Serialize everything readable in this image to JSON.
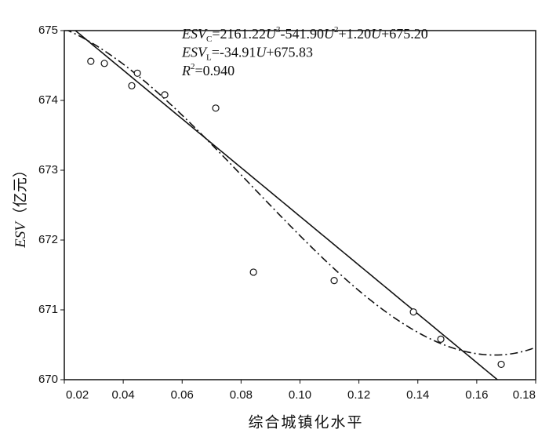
{
  "chart_data": {
    "type": "scatter",
    "x_label": "综合城镇化水平",
    "y_label": [
      {
        "text": "ESV",
        "role": "italic"
      },
      {
        "text": "（亿元）",
        "role": "normal"
      }
    ],
    "x": [
      0.029,
      0.0336,
      0.0429,
      0.0448,
      0.0541,
      0.0714,
      0.0842,
      0.1116,
      0.1385,
      0.1478,
      0.1683
    ],
    "values": [
      674.56,
      674.53,
      674.21,
      674.39,
      674.08,
      673.89,
      671.54,
      671.42,
      670.97,
      670.58,
      670.22
    ],
    "xlim": [
      0.02,
      0.18
    ],
    "ylim": [
      670,
      675
    ],
    "xticks": [
      {
        "value": 0.02,
        "label": "0.02"
      },
      {
        "value": 0.04,
        "label": "0.04"
      },
      {
        "value": 0.06,
        "label": "0.06"
      },
      {
        "value": 0.08,
        "label": "0.08"
      },
      {
        "value": 0.1,
        "label": "0.10"
      },
      {
        "value": 0.12,
        "label": "0.12"
      },
      {
        "value": 0.14,
        "label": "0.14"
      },
      {
        "value": 0.16,
        "label": "0.16"
      },
      {
        "value": 0.18,
        "label": "0.18"
      }
    ],
    "yticks": [
      670,
      671,
      672,
      673,
      674,
      675
    ],
    "fits": [
      {
        "coefficients": [
          2161.22,
          -541.9,
          1.2,
          675.2
        ],
        "style": "dash-dot"
      },
      {
        "coefficients": [
          -34.91,
          675.83
        ],
        "style": "solid"
      }
    ],
    "annotations": [
      [
        {
          "text": "ESV",
          "role": "italic"
        },
        {
          "text": "C",
          "role": "sub"
        },
        {
          "text": "=2161.22",
          "role": "normal"
        },
        {
          "text": "U",
          "role": "italic"
        },
        {
          "text": "3",
          "role": "sup"
        },
        {
          "text": "-541.90",
          "role": "normal"
        },
        {
          "text": "U",
          "role": "italic"
        },
        {
          "text": "2",
          "role": "sup"
        },
        {
          "text": "+1.20",
          "role": "normal"
        },
        {
          "text": "U",
          "role": "italic"
        },
        {
          "text": "+675.20",
          "role": "normal"
        }
      ],
      [
        {
          "text": "ESV",
          "role": "italic"
        },
        {
          "text": "L",
          "role": "sub"
        },
        {
          "text": "=-34.91",
          "role": "normal"
        },
        {
          "text": "U",
          "role": "italic"
        },
        {
          "text": "+675.83",
          "role": "normal"
        }
      ],
      [
        {
          "text": "R",
          "role": "italic"
        },
        {
          "text": "2",
          "role": "sup"
        },
        {
          "text": "=0.940",
          "role": "normal"
        }
      ]
    ]
  }
}
